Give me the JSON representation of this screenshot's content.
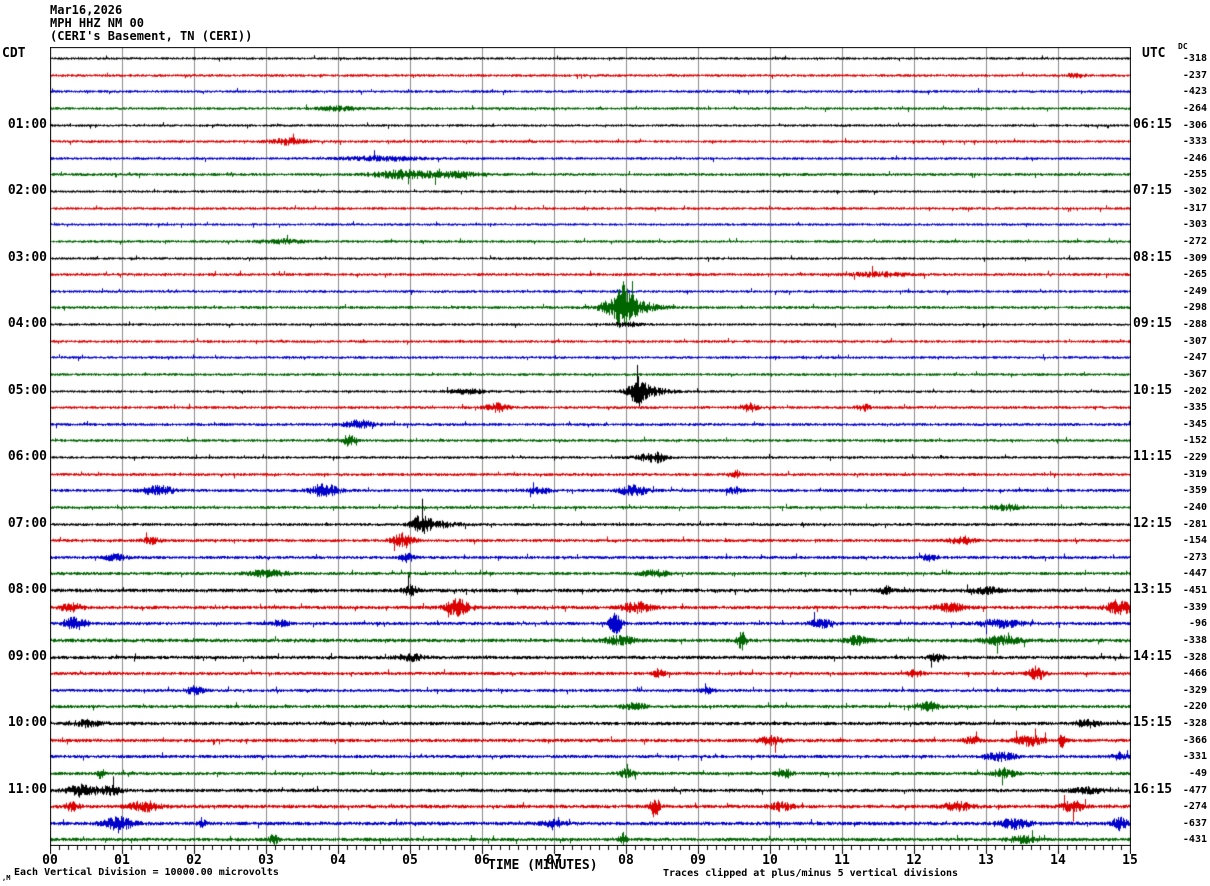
{
  "header": {
    "date": "Mar16,2026",
    "station": "MPH HHZ NM 00",
    "location": "(CERI's Basement, TN (CERI))"
  },
  "axes": {
    "left_timezone": "CDT",
    "right_timezone": "UTC",
    "dc_header": "DC",
    "x_title": "TIME (MINUTES)",
    "x_tick_labels": [
      "00",
      "01",
      "02",
      "03",
      "04",
      "05",
      "06",
      "07",
      "08",
      "09",
      "10",
      "11",
      "12",
      "13",
      "14",
      "15"
    ]
  },
  "footer": {
    "scale_note": "Each Vertical Division = 10000.00 microvolts",
    "clip_note": "Traces clipped at plus/minus 5 vertical divisions",
    "corner_mark": ",M"
  },
  "chart_data": {
    "type": "line",
    "title": "MPH HHZ NM 00 helicorder, Mar16,2026, CERI's Basement, TN (CERI)",
    "xlabel": "TIME (MINUTES)",
    "x_range_minutes": [
      0,
      15
    ],
    "minutes_per_row": 15,
    "rows_count": 48,
    "grid": "vertical lines at each minute",
    "colors_cycle": [
      "#000000",
      "#dd0000",
      "#0000cc",
      "#006600"
    ],
    "grid_color": "#8a8a8a",
    "rows": [
      {
        "color": "#000000",
        "left": null,
        "right": null,
        "dc": -318,
        "noise": 1.3,
        "events": []
      },
      {
        "color": "#dd0000",
        "left": null,
        "right": null,
        "dc": -237,
        "noise": 1.4,
        "events": [
          [
            14.25,
            3,
            0.1
          ]
        ]
      },
      {
        "color": "#0000cc",
        "left": null,
        "right": null,
        "dc": -423,
        "noise": 1.4,
        "events": []
      },
      {
        "color": "#006600",
        "left": null,
        "right": null,
        "dc": -264,
        "noise": 1.4,
        "events": [
          [
            4.0,
            2,
            0.3
          ]
        ]
      },
      {
        "color": "#000000",
        "left": "01:00",
        "right": "06:15",
        "dc": -306,
        "noise": 1.3,
        "events": []
      },
      {
        "color": "#dd0000",
        "left": null,
        "right": null,
        "dc": -333,
        "noise": 1.4,
        "events": [
          [
            3.3,
            3,
            0.25
          ]
        ]
      },
      {
        "color": "#0000cc",
        "left": null,
        "right": null,
        "dc": -246,
        "noise": 1.4,
        "events": [
          [
            4.6,
            2,
            0.5
          ]
        ]
      },
      {
        "color": "#006600",
        "left": null,
        "right": null,
        "dc": -255,
        "noise": 1.5,
        "events": [
          [
            4.9,
            4,
            0.4
          ],
          [
            5.6,
            3,
            0.3
          ]
        ]
      },
      {
        "color": "#000000",
        "left": "02:00",
        "right": "07:15",
        "dc": -302,
        "noise": 1.3,
        "events": []
      },
      {
        "color": "#dd0000",
        "left": null,
        "right": null,
        "dc": -317,
        "noise": 1.4,
        "events": []
      },
      {
        "color": "#0000cc",
        "left": null,
        "right": null,
        "dc": -303,
        "noise": 1.3,
        "events": []
      },
      {
        "color": "#006600",
        "left": null,
        "right": null,
        "dc": -272,
        "noise": 1.4,
        "events": [
          [
            3.2,
            2,
            0.3
          ]
        ]
      },
      {
        "color": "#000000",
        "left": "03:00",
        "right": "08:15",
        "dc": -309,
        "noise": 1.3,
        "events": []
      },
      {
        "color": "#dd0000",
        "left": null,
        "right": null,
        "dc": -265,
        "noise": 1.5,
        "events": [
          [
            11.5,
            2,
            0.4
          ]
        ]
      },
      {
        "color": "#0000cc",
        "left": null,
        "right": null,
        "dc": -249,
        "noise": 1.4,
        "events": []
      },
      {
        "color": "#006600",
        "left": null,
        "right": null,
        "dc": -298,
        "noise": 1.5,
        "events": [
          [
            7.98,
            20,
            0.1
          ],
          [
            8.05,
            7,
            0.35
          ],
          [
            7.8,
            4,
            0.15
          ]
        ]
      },
      {
        "color": "#000000",
        "left": "04:00",
        "right": "09:15",
        "dc": -288,
        "noise": 1.3,
        "events": [
          [
            8.0,
            2,
            0.2
          ]
        ]
      },
      {
        "color": "#dd0000",
        "left": null,
        "right": null,
        "dc": -307,
        "noise": 1.4,
        "events": []
      },
      {
        "color": "#0000cc",
        "left": null,
        "right": null,
        "dc": -247,
        "noise": 1.4,
        "events": []
      },
      {
        "color": "#006600",
        "left": null,
        "right": null,
        "dc": -367,
        "noise": 1.4,
        "events": []
      },
      {
        "color": "#000000",
        "left": "05:00",
        "right": "10:15",
        "dc": -202,
        "noise": 1.3,
        "events": [
          [
            8.17,
            11,
            0.12
          ],
          [
            8.3,
            4,
            0.3
          ],
          [
            5.8,
            2,
            0.3
          ]
        ]
      },
      {
        "color": "#dd0000",
        "left": null,
        "right": null,
        "dc": -335,
        "noise": 1.5,
        "events": [
          [
            6.2,
            4,
            0.15
          ],
          [
            9.7,
            4,
            0.12
          ],
          [
            11.3,
            3,
            0.1
          ]
        ]
      },
      {
        "color": "#0000cc",
        "left": null,
        "right": null,
        "dc": -345,
        "noise": 1.5,
        "events": [
          [
            4.3,
            4,
            0.2
          ]
        ]
      },
      {
        "color": "#006600",
        "left": null,
        "right": null,
        "dc": -152,
        "noise": 1.5,
        "events": [
          [
            4.15,
            6,
            0.08
          ]
        ]
      },
      {
        "color": "#000000",
        "left": "06:00",
        "right": "11:15",
        "dc": -229,
        "noise": 1.4,
        "events": [
          [
            8.3,
            3,
            0.2
          ],
          [
            8.45,
            3,
            0.1
          ]
        ]
      },
      {
        "color": "#dd0000",
        "left": null,
        "right": null,
        "dc": -319,
        "noise": 1.5,
        "events": [
          [
            9.5,
            3,
            0.1
          ]
        ]
      },
      {
        "color": "#0000cc",
        "left": null,
        "right": null,
        "dc": -359,
        "noise": 1.6,
        "events": [
          [
            1.5,
            5,
            0.2
          ],
          [
            3.8,
            6,
            0.2
          ],
          [
            6.8,
            3,
            0.15
          ],
          [
            8.1,
            5,
            0.2
          ],
          [
            9.5,
            3,
            0.1
          ]
        ]
      },
      {
        "color": "#006600",
        "left": null,
        "right": null,
        "dc": -240,
        "noise": 1.5,
        "events": [
          [
            13.3,
            3,
            0.2
          ]
        ]
      },
      {
        "color": "#000000",
        "left": "07:00",
        "right": "12:15",
        "dc": -281,
        "noise": 1.5,
        "events": [
          [
            5.15,
            8,
            0.12
          ],
          [
            5.35,
            3,
            0.3
          ]
        ]
      },
      {
        "color": "#dd0000",
        "left": null,
        "right": null,
        "dc": -154,
        "noise": 1.6,
        "events": [
          [
            4.9,
            7,
            0.15
          ],
          [
            12.65,
            4,
            0.15
          ],
          [
            1.4,
            3,
            0.1
          ]
        ]
      },
      {
        "color": "#0000cc",
        "left": null,
        "right": null,
        "dc": -273,
        "noise": 1.6,
        "events": [
          [
            4.95,
            4,
            0.1
          ],
          [
            12.2,
            3,
            0.1
          ],
          [
            0.9,
            3,
            0.15
          ]
        ]
      },
      {
        "color": "#006600",
        "left": null,
        "right": null,
        "dc": -447,
        "noise": 1.6,
        "events": [
          [
            3.0,
            3,
            0.3
          ],
          [
            8.4,
            3,
            0.2
          ]
        ]
      },
      {
        "color": "#000000",
        "left": "08:00",
        "right": "13:15",
        "dc": -451,
        "noise": 1.9,
        "events": [
          [
            5.0,
            5,
            0.1
          ],
          [
            11.6,
            4,
            0.08
          ],
          [
            13.0,
            3,
            0.2
          ]
        ]
      },
      {
        "color": "#dd0000",
        "left": null,
        "right": null,
        "dc": -339,
        "noise": 1.8,
        "events": [
          [
            0.3,
            4,
            0.15
          ],
          [
            5.65,
            9,
            0.15
          ],
          [
            8.15,
            5,
            0.2
          ],
          [
            12.5,
            4,
            0.2
          ],
          [
            14.85,
            6,
            0.2
          ]
        ]
      },
      {
        "color": "#0000cc",
        "left": null,
        "right": null,
        "dc": -96,
        "noise": 1.7,
        "events": [
          [
            0.35,
            6,
            0.15
          ],
          [
            3.2,
            4,
            0.1
          ],
          [
            7.85,
            11,
            0.08
          ],
          [
            10.7,
            4,
            0.15
          ],
          [
            13.2,
            4,
            0.3
          ]
        ]
      },
      {
        "color": "#006600",
        "left": null,
        "right": null,
        "dc": -338,
        "noise": 1.9,
        "events": [
          [
            9.6,
            9,
            0.06
          ],
          [
            7.9,
            4,
            0.2
          ],
          [
            11.2,
            4,
            0.15
          ],
          [
            13.2,
            4,
            0.25
          ]
        ]
      },
      {
        "color": "#000000",
        "left": "09:00",
        "right": "14:15",
        "dc": -328,
        "noise": 1.8,
        "events": [
          [
            12.3,
            4,
            0.1
          ],
          [
            5.0,
            3,
            0.2
          ]
        ]
      },
      {
        "color": "#dd0000",
        "left": null,
        "right": null,
        "dc": -466,
        "noise": 1.7,
        "events": [
          [
            13.7,
            7,
            0.1
          ],
          [
            8.45,
            4,
            0.08
          ],
          [
            12.0,
            3,
            0.1
          ]
        ]
      },
      {
        "color": "#0000cc",
        "left": null,
        "right": null,
        "dc": -329,
        "noise": 1.6,
        "events": [
          [
            2.0,
            4,
            0.12
          ],
          [
            9.1,
            3,
            0.1
          ]
        ]
      },
      {
        "color": "#006600",
        "left": null,
        "right": null,
        "dc": -220,
        "noise": 1.7,
        "events": [
          [
            12.2,
            4,
            0.15
          ],
          [
            8.1,
            3,
            0.15
          ]
        ]
      },
      {
        "color": "#000000",
        "left": "10:00",
        "right": "15:15",
        "dc": -328,
        "noise": 1.8,
        "events": [
          [
            14.4,
            4,
            0.15
          ],
          [
            0.5,
            3,
            0.2
          ]
        ]
      },
      {
        "color": "#dd0000",
        "left": null,
        "right": null,
        "dc": -366,
        "noise": 1.8,
        "events": [
          [
            10.0,
            4,
            0.15
          ],
          [
            12.8,
            4,
            0.1
          ],
          [
            13.6,
            5,
            0.2
          ],
          [
            14.05,
            7,
            0.05
          ]
        ]
      },
      {
        "color": "#0000cc",
        "left": null,
        "right": null,
        "dc": -331,
        "noise": 1.7,
        "events": [
          [
            13.2,
            4,
            0.2
          ],
          [
            14.85,
            4,
            0.1
          ]
        ]
      },
      {
        "color": "#006600",
        "left": null,
        "right": null,
        "dc": -49,
        "noise": 1.7,
        "events": [
          [
            0.7,
            5,
            0.05
          ],
          [
            8.0,
            4,
            0.1
          ],
          [
            10.2,
            4,
            0.1
          ],
          [
            13.25,
            5,
            0.15
          ]
        ]
      },
      {
        "color": "#000000",
        "left": "11:00",
        "right": "16:15",
        "dc": -477,
        "noise": 1.8,
        "events": [
          [
            0.45,
            6,
            0.2
          ],
          [
            0.85,
            4,
            0.15
          ],
          [
            14.4,
            3,
            0.2
          ]
        ]
      },
      {
        "color": "#dd0000",
        "left": null,
        "right": null,
        "dc": -274,
        "noise": 1.9,
        "events": [
          [
            0.3,
            4,
            0.1
          ],
          [
            1.3,
            5,
            0.2
          ],
          [
            8.4,
            11,
            0.06
          ],
          [
            10.15,
            4,
            0.15
          ],
          [
            12.6,
            4,
            0.2
          ],
          [
            14.2,
            5,
            0.15
          ]
        ]
      },
      {
        "color": "#0000cc",
        "left": null,
        "right": null,
        "dc": -637,
        "noise": 1.9,
        "events": [
          [
            0.95,
            6,
            0.2
          ],
          [
            2.1,
            5,
            0.05
          ],
          [
            7.0,
            3,
            0.15
          ],
          [
            13.4,
            5,
            0.2
          ],
          [
            14.85,
            6,
            0.1
          ]
        ]
      },
      {
        "color": "#006600",
        "left": null,
        "right": null,
        "dc": -431,
        "noise": 1.8,
        "events": [
          [
            3.1,
            5,
            0.06
          ],
          [
            7.95,
            6,
            0.05
          ],
          [
            13.5,
            3,
            0.2
          ]
        ]
      }
    ]
  }
}
